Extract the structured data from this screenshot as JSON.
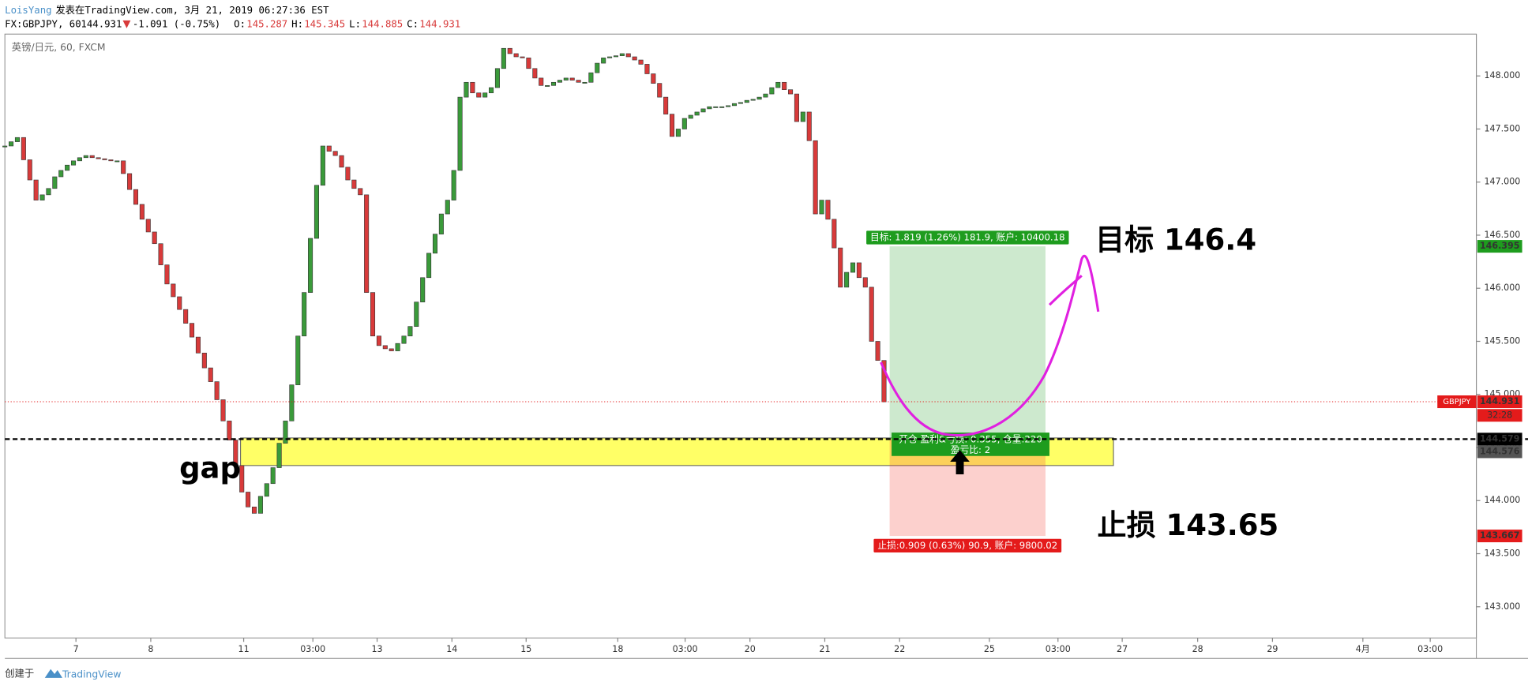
{
  "header": {
    "author": "LoisYang",
    "published": "发表在TradingView.com, 3月 21, 2019 06:27:36 EST",
    "symbol": "FX:GBPJPY, 60",
    "last": "144.931",
    "change": "-1.091 (-0.75%)",
    "ohlc": [
      {
        "label": "O:",
        "value": "145.287"
      },
      {
        "label": "H:",
        "value": "145.345"
      },
      {
        "label": "L:",
        "value": "144.885"
      },
      {
        "label": "C:",
        "value": "144.931"
      }
    ]
  },
  "chart_data": {
    "type": "candlestick",
    "title": "英镑/日元, 60, FXCM",
    "series": [
      {
        "name": "GBPJPY",
        "up_color": "#3a9a3a",
        "down_color": "#d83a3a",
        "x": [
          0,
          1,
          2,
          3,
          4,
          5,
          6,
          7,
          8,
          9,
          10,
          11,
          12,
          13,
          14,
          15,
          16,
          17,
          18,
          19,
          20,
          21,
          22,
          23,
          24,
          25,
          26,
          27,
          28,
          29,
          30,
          31,
          32,
          33,
          34,
          35,
          36,
          37,
          38,
          39,
          40,
          41,
          42,
          43,
          44,
          45,
          46,
          47,
          48,
          49,
          50,
          51,
          52,
          53,
          54,
          55,
          56,
          57,
          58,
          59,
          60,
          61,
          62,
          63,
          64,
          65,
          66,
          67,
          68,
          69,
          70,
          71,
          72,
          73,
          74,
          75,
          76,
          77,
          78,
          79,
          80,
          81,
          82,
          83,
          84,
          85,
          86,
          87,
          88,
          89,
          90,
          91,
          92,
          93,
          94,
          95,
          96,
          97,
          98,
          99,
          100,
          101,
          102,
          103,
          104,
          105,
          106,
          107,
          108,
          109,
          110,
          111,
          112,
          113,
          114,
          115,
          116,
          117,
          118,
          119,
          120,
          121,
          122,
          123,
          124,
          125,
          126,
          127,
          128,
          129,
          130,
          131,
          132,
          133,
          134,
          135,
          136,
          137,
          138,
          139,
          140,
          141
        ],
        "values": [
          147.34,
          147.38,
          147.42,
          147.21,
          147.02,
          146.83,
          146.88,
          146.94,
          147.05,
          147.11,
          147.16,
          147.2,
          147.23,
          147.25,
          147.23,
          147.22,
          147.21,
          147.2,
          147.2,
          147.08,
          146.93,
          146.79,
          146.65,
          146.53,
          146.42,
          146.22,
          146.04,
          145.92,
          145.8,
          145.67,
          145.54,
          145.39,
          145.25,
          145.12,
          144.95,
          144.75,
          144.57,
          144.33,
          144.08,
          143.94,
          143.88,
          144.04,
          144.16,
          144.31,
          144.54,
          144.75,
          145.09,
          145.55,
          145.96,
          146.47,
          146.97,
          147.34,
          147.29,
          147.25,
          147.14,
          147.02,
          146.94,
          146.88,
          145.96,
          145.55,
          145.46,
          145.43,
          145.41,
          145.48,
          145.55,
          145.64,
          145.87,
          146.1,
          146.33,
          146.51,
          146.7,
          146.83,
          147.11,
          147.8,
          147.94,
          147.84,
          147.8,
          147.84,
          147.89,
          148.07,
          148.26,
          148.21,
          148.18,
          148.17,
          148.07,
          147.98,
          147.91,
          147.91,
          147.94,
          147.96,
          147.98,
          147.96,
          147.94,
          147.94,
          148.03,
          148.12,
          148.17,
          148.18,
          148.19,
          148.21,
          148.18,
          148.15,
          148.11,
          148.02,
          147.93,
          147.8,
          147.64,
          147.43,
          147.5,
          147.6,
          147.63,
          147.66,
          147.69,
          147.71,
          147.71,
          147.71,
          147.72,
          147.74,
          147.75,
          147.77,
          147.78,
          147.8,
          147.83,
          147.89,
          147.94,
          147.87,
          147.83,
          147.57,
          147.66,
          147.39,
          146.7,
          146.83,
          146.65,
          146.38,
          146.01,
          146.15,
          146.24,
          146.1,
          146.01,
          145.5,
          145.32,
          144.93
        ]
      }
    ],
    "xlim": [
      0,
      236
    ],
    "xticks": [
      {
        "value": 11.4,
        "label": "7"
      },
      {
        "value": 23.4,
        "label": "8"
      },
      {
        "value": 38.3,
        "label": "11"
      },
      {
        "value": 49.4,
        "label": "03:00"
      },
      {
        "value": 59.7,
        "label": "13"
      },
      {
        "value": 71.7,
        "label": "14"
      },
      {
        "value": 83.6,
        "label": "15"
      },
      {
        "value": 98.3,
        "label": "18"
      },
      {
        "value": 109.1,
        "label": "03:00"
      },
      {
        "value": 119.5,
        "label": "20"
      },
      {
        "value": 131.5,
        "label": "21"
      },
      {
        "value": 143.5,
        "label": "22"
      },
      {
        "value": 157.9,
        "label": "25"
      },
      {
        "value": 168.9,
        "label": "03:00"
      },
      {
        "value": 179.2,
        "label": "27"
      },
      {
        "value": 191.3,
        "label": "28"
      },
      {
        "value": 203.3,
        "label": "29"
      },
      {
        "value": 217.8,
        "label": "4月"
      },
      {
        "value": 228.6,
        "label": "03:00"
      }
    ],
    "ylim": [
      142.706,
      148.394
    ],
    "yticks": [
      {
        "value": 143,
        "label": "143.000"
      },
      {
        "value": 143.5,
        "label": "143.500"
      },
      {
        "value": 144,
        "label": "144.000"
      },
      {
        "value": 144.5,
        "label": "144.500"
      },
      {
        "value": 145,
        "label": "145.000"
      },
      {
        "value": 145.5,
        "label": "145.500"
      },
      {
        "value": 146,
        "label": "146.000"
      },
      {
        "value": 146.5,
        "label": "146.500"
      },
      {
        "value": 147,
        "label": "147.000"
      },
      {
        "value": 147.5,
        "label": "147.500"
      },
      {
        "value": 148,
        "label": "148.000"
      }
    ],
    "last_price": {
      "value": 144.931,
      "label": "144.931",
      "countdown": "32:28",
      "color": "#e41b1b"
    },
    "price_tags": [
      {
        "value": 146.395,
        "label": "146.395",
        "color": "#1e9c1e"
      },
      {
        "value": 144.579,
        "label": "144.579",
        "color": "#000000"
      },
      {
        "value": 144.576,
        "label": "144.576",
        "color": "#555555"
      },
      {
        "value": 143.667,
        "label": "143.667",
        "color": "#e41b1b"
      }
    ],
    "position": {
      "x": [
        141.9,
        166.9
      ],
      "entry": 144.576,
      "target": 146.395,
      "stop": 143.667,
      "target_label": "目标: 1.819 (1.26%) 181.9, 账户: 10400.18",
      "entry_label": "开仓 盈利&亏损: 0.355, 仓量:220",
      "ratio_label": "盈亏比: 2",
      "stop_label": "止损:0.909 (0.63%) 90.9, 账户: 9800.02"
    },
    "zone": {
      "x": [
        37.8,
        177.8
      ],
      "top": 144.59,
      "bottom": 144.33,
      "color": "#ffff66"
    },
    "annotations": [
      "目标 146.4",
      "止损 143.65",
      "gap"
    ]
  },
  "footer": {
    "created": "创建于",
    "brand": "TradingView"
  }
}
